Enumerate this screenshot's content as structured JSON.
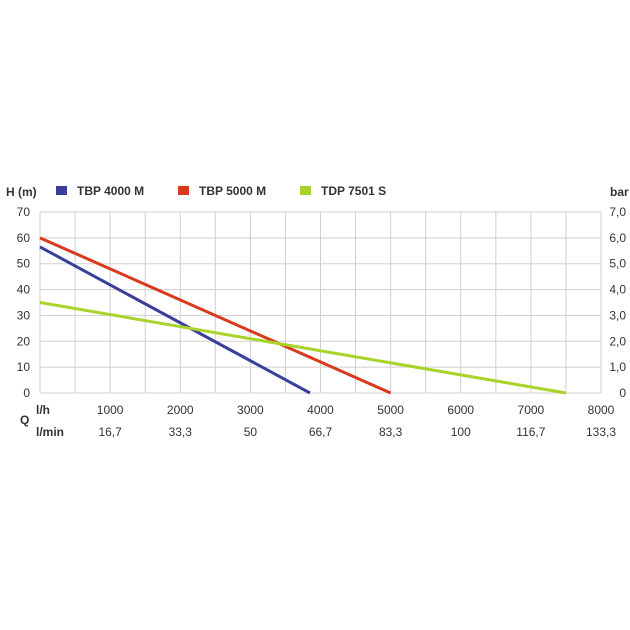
{
  "chart_data": {
    "type": "line",
    "ylabel_left": "H (m)",
    "ylabel_right": "bar",
    "q_label": "Q",
    "x_unit_lh": "l/h",
    "x_unit_lmin": "l/min",
    "xlim": [
      0,
      8000
    ],
    "ylim": [
      0,
      70
    ],
    "grid": true,
    "legend_position": "top",
    "y_ticks_left": [
      "0",
      "10",
      "20",
      "30",
      "40",
      "50",
      "60",
      "70"
    ],
    "y_ticks_right": [
      "0",
      "1,0",
      "2,0",
      "3,0",
      "4,0",
      "5,0",
      "6,0",
      "7,0"
    ],
    "x_ticks_lh": [
      "1000",
      "2000",
      "3000",
      "4000",
      "5000",
      "6000",
      "7000",
      "8000"
    ],
    "x_ticks_lmin": [
      "16,7",
      "33,3",
      "50",
      "66,7",
      "83,3",
      "100",
      "116,7",
      "133,3"
    ],
    "series": [
      {
        "name": "TBP 4000 M",
        "color": "#3a3f9a",
        "x": [
          0,
          3850
        ],
        "y": [
          56.5,
          0
        ]
      },
      {
        "name": "TBP 5000 M",
        "color": "#d93a1e",
        "x": [
          0,
          5000
        ],
        "y": [
          60,
          0
        ]
      },
      {
        "name": "TDP 7501 S",
        "color": "#a8d32a",
        "x": [
          0,
          7500
        ],
        "y": [
          35,
          0
        ]
      }
    ]
  }
}
